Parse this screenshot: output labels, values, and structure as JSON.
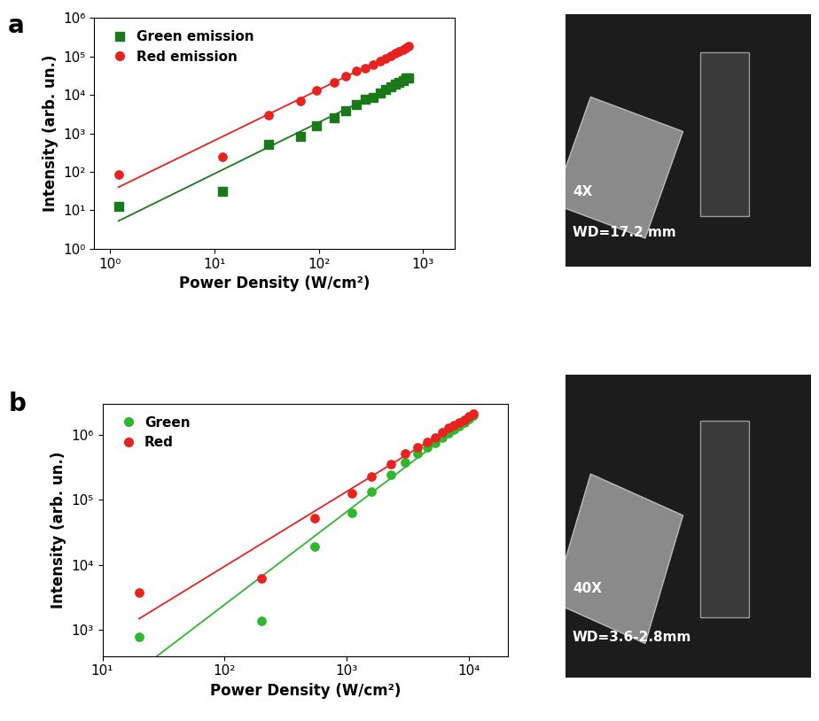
{
  "chart_data": [
    {
      "type": "scatter",
      "panel": "a",
      "log": true,
      "x_label": "Power Density (W/cm²)",
      "y_label": "Intensity (arb. un.)",
      "xlim": [
        0.7,
        2000
      ],
      "ylim": [
        1,
        1000000
      ],
      "xticks": [
        {
          "value": 1,
          "label": "10⁰"
        },
        {
          "value": 10,
          "label": "10¹"
        },
        {
          "value": 100,
          "label": "10²"
        },
        {
          "value": 1000,
          "label": "10³"
        }
      ],
      "yticks": [
        {
          "value": 1,
          "label": "10⁰"
        },
        {
          "value": 10,
          "label": "10¹"
        },
        {
          "value": 100,
          "label": "10²"
        },
        {
          "value": 1000,
          "label": "10³"
        },
        {
          "value": 10000,
          "label": "10⁴"
        },
        {
          "value": 100000,
          "label": "10⁵"
        },
        {
          "value": 1000000,
          "label": "10⁶"
        }
      ],
      "legend": "upper left",
      "series": [
        {
          "name": "Green emission",
          "color": "#1a7a1a",
          "marker": "square",
          "x": [
            1.2,
            12,
            33,
            67,
            95,
            140,
            180,
            230,
            280,
            330,
            390,
            440,
            490,
            540,
            590,
            640,
            690,
            720
          ],
          "values": [
            12.5,
            31,
            520,
            850,
            1550,
            2600,
            3900,
            5500,
            7800,
            8800,
            11500,
            14000,
            16500,
            19000,
            21000,
            24000,
            27000,
            28000
          ],
          "fit_x": [
            1.2,
            720
          ],
          "fit_values": [
            5.3,
            27000
          ]
        },
        {
          "name": "Red emission",
          "color": "#e8231f",
          "marker": "circle",
          "x": [
            1.2,
            12,
            33,
            67,
            95,
            140,
            180,
            230,
            280,
            330,
            390,
            440,
            490,
            540,
            590,
            640,
            690,
            720
          ],
          "values": [
            85,
            250,
            2950,
            7000,
            13500,
            21000,
            30000,
            42000,
            50000,
            60000,
            75000,
            90000,
            105000,
            120000,
            135000,
            150000,
            170000,
            185000
          ],
          "fit_x": [
            1.2,
            720
          ],
          "fit_values": [
            40,
            185000
          ]
        }
      ]
    },
    {
      "type": "scatter",
      "panel": "b",
      "log": true,
      "x_label": "Power Density (W/cm²)",
      "y_label": "Intensity (arb. un.)",
      "xlim": [
        10,
        21000
      ],
      "ylim": [
        400,
        3000000
      ],
      "xticks": [
        {
          "value": 10,
          "label": "10¹"
        },
        {
          "value": 100,
          "label": "10²"
        },
        {
          "value": 1000,
          "label": "10³"
        },
        {
          "value": 10000,
          "label": "10⁴"
        }
      ],
      "yticks": [
        {
          "value": 1000,
          "label": "10³"
        },
        {
          "value": 10000,
          "label": "10⁴"
        },
        {
          "value": 100000,
          "label": "10⁵"
        },
        {
          "value": 1000000,
          "label": "10⁶"
        }
      ],
      "legend": "upper left",
      "series": [
        {
          "name": "Green",
          "color": "#2db82d",
          "marker": "circle",
          "x": [
            20,
            200,
            550,
            1100,
            1600,
            2300,
            3000,
            3800,
            4600,
            5300,
            6100,
            6900,
            7600,
            8400,
            9200,
            10000,
            11000
          ],
          "values": [
            800,
            1400,
            19500,
            63000,
            135000,
            240000,
            380000,
            520000,
            640000,
            760000,
            900000,
            1050000,
            1200000,
            1350000,
            1550000,
            1750000,
            2000000
          ],
          "fit_x": [
            28,
            11000
          ],
          "fit_values": [
            400,
            2000000
          ]
        },
        {
          "name": "Red",
          "color": "#e8231f",
          "marker": "circle",
          "x": [
            20,
            200,
            550,
            1100,
            1600,
            2300,
            3000,
            3800,
            4600,
            5300,
            6100,
            6900,
            7600,
            8400,
            9200,
            10000,
            11000
          ],
          "values": [
            3800,
            6200,
            52000,
            125000,
            230000,
            360000,
            520000,
            650000,
            780000,
            900000,
            1100000,
            1300000,
            1400000,
            1550000,
            1700000,
            1900000,
            2100000
          ],
          "fit_x": [
            20,
            11000
          ],
          "fit_values": [
            1500,
            2100000
          ]
        }
      ]
    }
  ],
  "photos": [
    {
      "panel": "a",
      "texts": [
        "4X",
        "WD=17.2 mm"
      ]
    },
    {
      "panel": "b",
      "texts": [
        "40X",
        "WD=3.6-2.8mm"
      ]
    }
  ]
}
